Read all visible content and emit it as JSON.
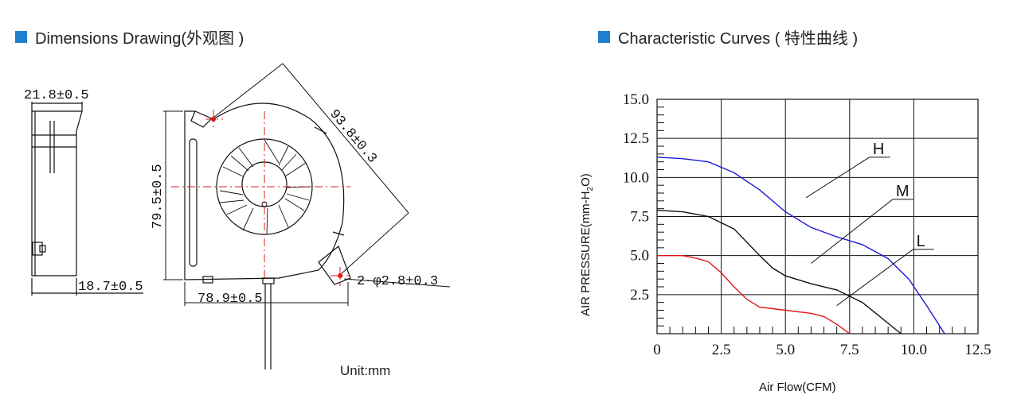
{
  "dimensions": {
    "title": "Dimensions Drawing(外观图 )",
    "labels": {
      "width_side": "21.8±0.5",
      "base_side": "18.7±0.5",
      "height": "79.5±0.5",
      "diagonal": "93.8±0.3",
      "bottom_width": "78.9±0.5",
      "holes": "2-φ2.8±0.3"
    },
    "unit": "Unit:mm"
  },
  "curves": {
    "title": "Characteristic Curves ( 特性曲线 )",
    "colors": {
      "H": "#1a1ad6",
      "M": "#111111",
      "L": "#e01818"
    },
    "chart_data": {
      "type": "line",
      "xlabel": "Air Flow(CFM)",
      "ylabel": "AIR PRESSURE(mm-H2O)",
      "xlim": [
        0,
        12.5
      ],
      "ylim": [
        0,
        15
      ],
      "x_ticks": [
        "0",
        "2.5",
        "5.0",
        "7.5",
        "10.0",
        "12.5"
      ],
      "y_ticks": [
        "2.5",
        "5.0",
        "7.5",
        "10.0",
        "12.5",
        "15.0"
      ],
      "grid": true,
      "series": [
        {
          "name": "H",
          "x": [
            0,
            1.0,
            2.0,
            3.0,
            4.0,
            5.0,
            6.0,
            7.0,
            8.0,
            9.0,
            9.8,
            10.5,
            11.2
          ],
          "y": [
            11.3,
            11.2,
            11.0,
            10.3,
            9.2,
            7.8,
            6.8,
            6.2,
            5.7,
            4.8,
            3.5,
            1.8,
            0
          ]
        },
        {
          "name": "M",
          "x": [
            0,
            1.0,
            2.0,
            3.0,
            4.0,
            4.5,
            5.0,
            6.0,
            7.0,
            8.0,
            8.6,
            9.5
          ],
          "y": [
            7.9,
            7.8,
            7.5,
            6.7,
            5.0,
            4.2,
            3.7,
            3.2,
            2.8,
            2.0,
            1.2,
            0
          ]
        },
        {
          "name": "L",
          "x": [
            0,
            1.0,
            1.6,
            2.0,
            2.5,
            3.0,
            3.5,
            4.0,
            4.5,
            5.0,
            6.0,
            6.5,
            7.0,
            7.5
          ],
          "y": [
            5.0,
            5.0,
            4.8,
            4.6,
            3.9,
            3.0,
            2.2,
            1.7,
            1.6,
            1.5,
            1.3,
            1.1,
            0.6,
            0
          ]
        }
      ]
    }
  }
}
